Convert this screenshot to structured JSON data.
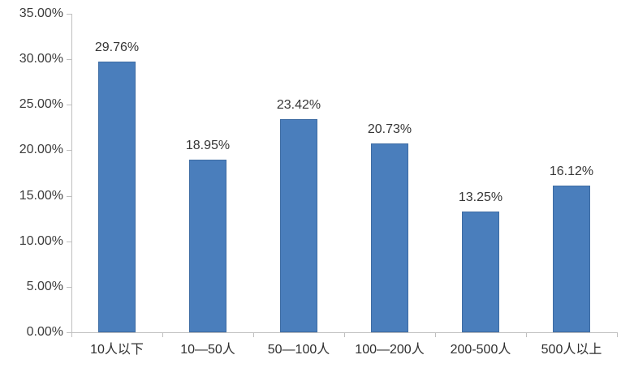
{
  "chart_data": {
    "type": "bar",
    "title": "",
    "xlabel": "",
    "ylabel": "",
    "categories": [
      "10人以下",
      "10—50人",
      "50—100人",
      "100—200人",
      "200-500人",
      "500人以上"
    ],
    "values": [
      29.76,
      18.95,
      23.42,
      20.73,
      13.25,
      16.12
    ],
    "value_labels": [
      "29.76%",
      "18.95%",
      "23.42%",
      "20.73%",
      "13.25%",
      "16.12%"
    ],
    "ylim": [
      0,
      35
    ],
    "ytick_step": 5,
    "ytick_labels": [
      "0.00%",
      "5.00%",
      "10.00%",
      "15.00%",
      "20.00%",
      "25.00%",
      "30.00%",
      "35.00%"
    ],
    "grid": false,
    "legend": null,
    "colors": {
      "bar_fill": "#4a7ebc",
      "bar_border": "#3e6ca3",
      "axis": "#bfbfbf",
      "label_text": "#363636"
    }
  }
}
